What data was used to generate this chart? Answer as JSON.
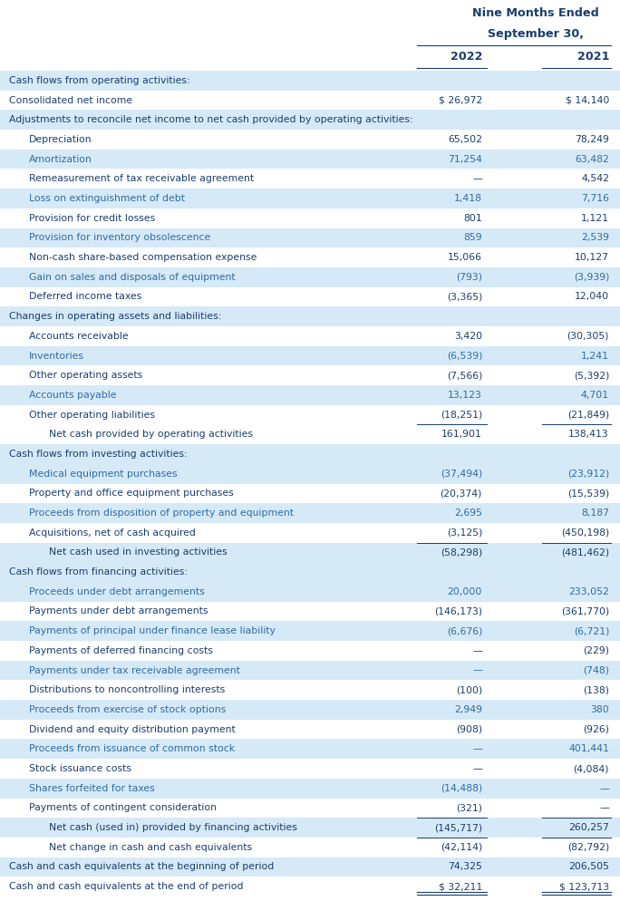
{
  "title_line1": "Nine Months Ended",
  "title_line2": "September 30,",
  "col_headers": [
    "2022",
    "2021"
  ],
  "rows": [
    {
      "label": "Cash flows from operating activities:",
      "val2022": "",
      "val2021": "",
      "style": "section",
      "bg": "light"
    },
    {
      "label": "Consolidated net income",
      "val2022": "$ 26,972",
      "val2021": "$ 14,140",
      "style": "normal",
      "bg": "white",
      "dollar_prefix": true
    },
    {
      "label": "Adjustments to reconcile net income to net cash provided by operating activities:",
      "val2022": "",
      "val2021": "",
      "style": "section",
      "bg": "light"
    },
    {
      "label": "Depreciation",
      "val2022": "65,502",
      "val2021": "78,249",
      "style": "indented",
      "bg": "white"
    },
    {
      "label": "Amortization",
      "val2022": "71,254",
      "val2021": "63,482",
      "style": "indented",
      "bg": "light"
    },
    {
      "label": "Remeasurement of tax receivable agreement",
      "val2022": "—",
      "val2021": "4,542",
      "style": "indented",
      "bg": "white"
    },
    {
      "label": "Loss on extinguishment of debt",
      "val2022": "1,418",
      "val2021": "7,716",
      "style": "indented",
      "bg": "light"
    },
    {
      "label": "Provision for credit losses",
      "val2022": "801",
      "val2021": "1,121",
      "style": "indented",
      "bg": "white"
    },
    {
      "label": "Provision for inventory obsolescence",
      "val2022": "859",
      "val2021": "2,539",
      "style": "indented",
      "bg": "light"
    },
    {
      "label": "Non-cash share-based compensation expense",
      "val2022": "15,066",
      "val2021": "10,127",
      "style": "indented",
      "bg": "white"
    },
    {
      "label": "Gain on sales and disposals of equipment",
      "val2022": "(793)",
      "val2021": "(3,939)",
      "style": "indented",
      "bg": "light"
    },
    {
      "label": "Deferred income taxes",
      "val2022": "(3,365)",
      "val2021": "12,040",
      "style": "indented",
      "bg": "white"
    },
    {
      "label": "Changes in operating assets and liabilities:",
      "val2022": "",
      "val2021": "",
      "style": "section",
      "bg": "light"
    },
    {
      "label": "Accounts receivable",
      "val2022": "3,420",
      "val2021": "(30,305)",
      "style": "indented",
      "bg": "white"
    },
    {
      "label": "Inventories",
      "val2022": "(6,539)",
      "val2021": "1,241",
      "style": "indented",
      "bg": "light"
    },
    {
      "label": "Other operating assets",
      "val2022": "(7,566)",
      "val2021": "(5,392)",
      "style": "indented",
      "bg": "white"
    },
    {
      "label": "Accounts payable",
      "val2022": "13,123",
      "val2021": "4,701",
      "style": "indented",
      "bg": "light"
    },
    {
      "label": "Other operating liabilities",
      "val2022": "(18,251)",
      "val2021": "(21,849)",
      "style": "indented",
      "bg": "white"
    },
    {
      "label": "Net cash provided by operating activities",
      "val2022": "161,901",
      "val2021": "138,413",
      "style": "subtotal",
      "bg": "white"
    },
    {
      "label": "Cash flows from investing activities:",
      "val2022": "",
      "val2021": "",
      "style": "section",
      "bg": "light"
    },
    {
      "label": "Medical equipment purchases",
      "val2022": "(37,494)",
      "val2021": "(23,912)",
      "style": "indented",
      "bg": "light"
    },
    {
      "label": "Property and office equipment purchases",
      "val2022": "(20,374)",
      "val2021": "(15,539)",
      "style": "indented",
      "bg": "white"
    },
    {
      "label": "Proceeds from disposition of property and equipment",
      "val2022": "2,695",
      "val2021": "8,187",
      "style": "indented",
      "bg": "light"
    },
    {
      "label": "Acquisitions, net of cash acquired",
      "val2022": "(3,125)",
      "val2021": "(450,198)",
      "style": "indented",
      "bg": "white"
    },
    {
      "label": "Net cash used in investing activities",
      "val2022": "(58,298)",
      "val2021": "(481,462)",
      "style": "subtotal",
      "bg": "light"
    },
    {
      "label": "Cash flows from financing activities:",
      "val2022": "",
      "val2021": "",
      "style": "section",
      "bg": "light"
    },
    {
      "label": "Proceeds under debt arrangements",
      "val2022": "20,000",
      "val2021": "233,052",
      "style": "indented",
      "bg": "light"
    },
    {
      "label": "Payments under debt arrangements",
      "val2022": "(146,173)",
      "val2021": "(361,770)",
      "style": "indented",
      "bg": "white"
    },
    {
      "label": "Payments of principal under finance lease liability",
      "val2022": "(6,676)",
      "val2021": "(6,721)",
      "style": "indented",
      "bg": "light"
    },
    {
      "label": "Payments of deferred financing costs",
      "val2022": "—",
      "val2021": "(229)",
      "style": "indented",
      "bg": "white"
    },
    {
      "label": "Payments under tax receivable agreement",
      "val2022": "—",
      "val2021": "(748)",
      "style": "indented",
      "bg": "light"
    },
    {
      "label": "Distributions to noncontrolling interests",
      "val2022": "(100)",
      "val2021": "(138)",
      "style": "indented",
      "bg": "white"
    },
    {
      "label": "Proceeds from exercise of stock options",
      "val2022": "2,949",
      "val2021": "380",
      "style": "indented",
      "bg": "light"
    },
    {
      "label": "Dividend and equity distribution payment",
      "val2022": "(908)",
      "val2021": "(926)",
      "style": "indented",
      "bg": "white"
    },
    {
      "label": "Proceeds from issuance of common stock",
      "val2022": "—",
      "val2021": "401,441",
      "style": "indented",
      "bg": "light"
    },
    {
      "label": "Stock issuance costs",
      "val2022": "—",
      "val2021": "(4,084)",
      "style": "indented",
      "bg": "white"
    },
    {
      "label": "Shares forfeited for taxes",
      "val2022": "(14,488)",
      "val2021": "—",
      "style": "indented",
      "bg": "light"
    },
    {
      "label": "Payments of contingent consideration",
      "val2022": "(321)",
      "val2021": "—",
      "style": "indented",
      "bg": "white"
    },
    {
      "label": "Net cash (used in) provided by financing activities",
      "val2022": "(145,717)",
      "val2021": "260,257",
      "style": "subtotal",
      "bg": "light"
    },
    {
      "label": "Net change in cash and cash equivalents",
      "val2022": "(42,114)",
      "val2021": "(82,792)",
      "style": "subtotal2",
      "bg": "white"
    },
    {
      "label": "Cash and cash equivalents at the beginning of period",
      "val2022": "74,325",
      "val2021": "206,505",
      "style": "normal",
      "bg": "light"
    },
    {
      "label": "Cash and cash equivalents at the end of period",
      "val2022": "$ 32,211",
      "val2021": "$ 123,713",
      "style": "total",
      "bg": "white"
    }
  ],
  "bg_light": "#d6e9f7",
  "bg_white": "#ffffff",
  "text_dark": "#1a3d6e",
  "text_blue": "#2e6ca4",
  "font_size": 7.8,
  "header_font_size": 9.2
}
